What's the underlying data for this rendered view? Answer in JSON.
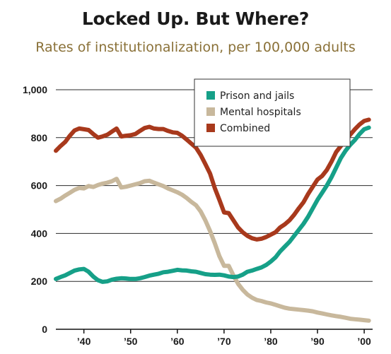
{
  "chart_data": {
    "type": "line",
    "title": "Locked Up. But Where?",
    "subtitle": "Rates of institutionalization, per 100,000 adults",
    "xlabel": "",
    "ylabel": "",
    "xlim": [
      1934,
      2001.8
    ],
    "ylim": [
      0,
      1000
    ],
    "yticks": [
      0,
      200,
      400,
      600,
      800,
      1000
    ],
    "ytick_labels": [
      "0",
      "200",
      "400",
      "600",
      "800",
      "1,000"
    ],
    "xticks": [
      1940,
      1950,
      1960,
      1970,
      1980,
      1990,
      2000
    ],
    "xtick_labels": [
      "’40",
      "’50",
      "’60",
      "’70",
      "’80",
      "’90",
      "’00"
    ],
    "grid": true,
    "legend_position": "top-right",
    "series": [
      {
        "name": "Prison and jails",
        "color": "#16a088",
        "x": [
          1934,
          1935,
          1936,
          1937,
          1938,
          1939,
          1940,
          1941,
          1942,
          1943,
          1944,
          1945,
          1946,
          1947,
          1948,
          1949,
          1950,
          1951,
          1952,
          1953,
          1954,
          1955,
          1956,
          1957,
          1958,
          1959,
          1960,
          1961,
          1962,
          1963,
          1964,
          1965,
          1966,
          1967,
          1968,
          1969,
          1970,
          1971,
          1972,
          1973,
          1974,
          1975,
          1976,
          1977,
          1978,
          1979,
          1980,
          1981,
          1982,
          1983,
          1984,
          1985,
          1986,
          1987,
          1988,
          1989,
          1990,
          1991,
          1992,
          1993,
          1994,
          1995,
          1996,
          1997,
          1998,
          1999,
          2000,
          2001
        ],
        "values": [
          210,
          218,
          225,
          235,
          245,
          250,
          252,
          240,
          220,
          205,
          198,
          200,
          207,
          211,
          213,
          212,
          210,
          210,
          213,
          218,
          224,
          228,
          232,
          238,
          240,
          244,
          248,
          246,
          245,
          242,
          240,
          235,
          230,
          228,
          227,
          228,
          225,
          220,
          218,
          220,
          228,
          240,
          245,
          252,
          258,
          268,
          283,
          300,
          325,
          345,
          365,
          390,
          415,
          440,
          470,
          505,
          540,
          570,
          600,
          635,
          675,
          715,
          745,
          770,
          790,
          815,
          835,
          842
        ]
      },
      {
        "name": "Mental hospitals",
        "color": "#c8b89c",
        "x": [
          1934,
          1935,
          1936,
          1937,
          1938,
          1939,
          1940,
          1941,
          1942,
          1943,
          1944,
          1945,
          1946,
          1947,
          1948,
          1949,
          1950,
          1951,
          1952,
          1953,
          1954,
          1955,
          1956,
          1957,
          1958,
          1959,
          1960,
          1961,
          1962,
          1963,
          1964,
          1965,
          1966,
          1967,
          1968,
          1969,
          1970,
          1971,
          1972,
          1973,
          1974,
          1975,
          1976,
          1977,
          1978,
          1979,
          1980,
          1981,
          1982,
          1983,
          1984,
          1985,
          1986,
          1987,
          1988,
          1989,
          1990,
          1991,
          1992,
          1993,
          1994,
          1995,
          1996,
          1997,
          1998,
          1999,
          2000,
          2001
        ],
        "values": [
          535,
          545,
          558,
          570,
          582,
          590,
          588,
          598,
          594,
          602,
          608,
          612,
          618,
          628,
          592,
          595,
          600,
          605,
          610,
          618,
          620,
          612,
          605,
          598,
          588,
          580,
          572,
          562,
          548,
          532,
          518,
          492,
          455,
          410,
          360,
          305,
          265,
          265,
          225,
          190,
          165,
          145,
          132,
          122,
          118,
          112,
          108,
          102,
          96,
          90,
          86,
          84,
          82,
          80,
          78,
          75,
          70,
          66,
          62,
          58,
          55,
          52,
          48,
          44,
          42,
          40,
          38,
          36
        ]
      },
      {
        "name": "Combined",
        "color": "#a8391c",
        "x": [
          1934,
          1935,
          1936,
          1937,
          1938,
          1939,
          1940,
          1941,
          1942,
          1943,
          1944,
          1945,
          1946,
          1947,
          1948,
          1949,
          1950,
          1951,
          1952,
          1953,
          1954,
          1955,
          1956,
          1957,
          1958,
          1959,
          1960,
          1961,
          1962,
          1963,
          1964,
          1965,
          1966,
          1967,
          1968,
          1969,
          1970,
          1971,
          1972,
          1973,
          1974,
          1975,
          1976,
          1977,
          1978,
          1979,
          1980,
          1981,
          1982,
          1983,
          1984,
          1985,
          1986,
          1987,
          1988,
          1989,
          1990,
          1991,
          1992,
          1993,
          1994,
          1995,
          1996,
          1997,
          1998,
          1999,
          2000,
          2001
        ],
        "values": [
          745,
          765,
          782,
          808,
          830,
          838,
          835,
          832,
          815,
          800,
          805,
          812,
          825,
          838,
          805,
          808,
          810,
          815,
          828,
          840,
          845,
          838,
          836,
          836,
          828,
          822,
          820,
          808,
          792,
          775,
          758,
          728,
          690,
          650,
          590,
          540,
          488,
          485,
          455,
          425,
          405,
          390,
          380,
          375,
          378,
          385,
          395,
          405,
          425,
          438,
          455,
          478,
          505,
          530,
          565,
          595,
          625,
          640,
          665,
          700,
          740,
          765,
          790,
          812,
          835,
          855,
          870,
          875
        ]
      }
    ]
  }
}
